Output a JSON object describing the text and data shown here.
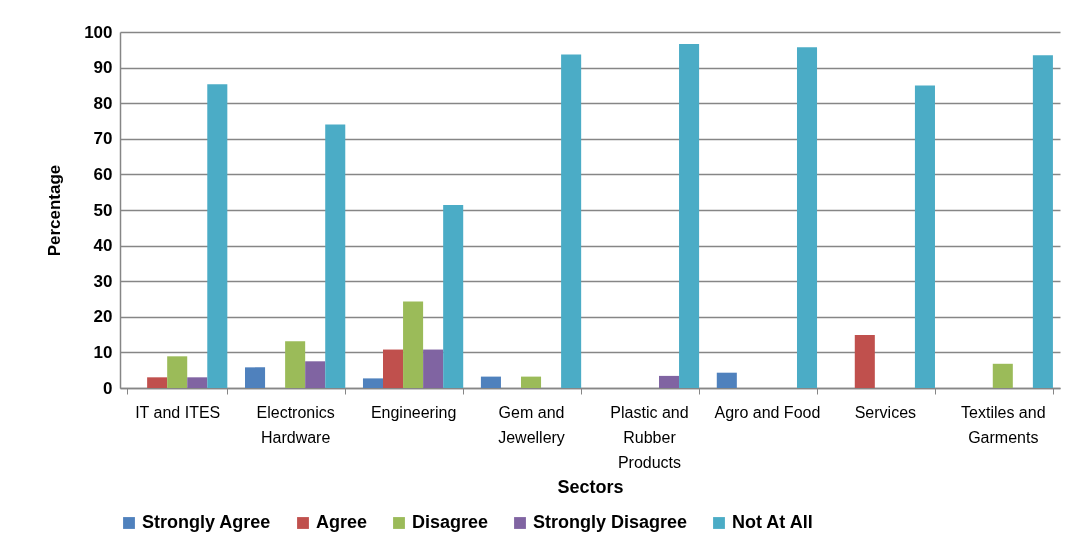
{
  "chart_data": {
    "type": "bar",
    "xlabel": "Sectors",
    "ylabel": "Percentage",
    "categories": [
      "IT and ITES",
      "Electronics Hardware",
      "Engineering",
      "Gem and Jewellery",
      "Plastic and Rubber Products",
      "Agro and Food",
      "Services",
      "Textiles and Garments"
    ],
    "series": [
      {
        "name": "Strongly Agree",
        "color": "#4f81bd",
        "values": [
          null,
          5.8,
          2.7,
          3.2,
          null,
          4.3,
          null,
          null
        ]
      },
      {
        "name": "Agree",
        "color": "#c0504d",
        "values": [
          3.0,
          null,
          10.8,
          null,
          null,
          null,
          14.9,
          null
        ]
      },
      {
        "name": "Disagree",
        "color": "#9bbb59",
        "values": [
          8.9,
          13.1,
          24.3,
          3.2,
          null,
          null,
          null,
          6.8
        ]
      },
      {
        "name": "Strongly Disagree",
        "color": "#8064a2",
        "values": [
          3.0,
          7.5,
          10.8,
          null,
          3.4,
          null,
          null,
          null
        ]
      },
      {
        "name": "Not At All",
        "color": "#4bacc6",
        "values": [
          85.3,
          74.0,
          51.4,
          93.7,
          96.6,
          95.7,
          85.0,
          93.5
        ]
      }
    ],
    "ylim": [
      0,
      100
    ],
    "yticks": [
      0,
      10,
      20,
      30,
      40,
      50,
      60,
      70,
      80,
      90,
      100
    ],
    "grid": "y",
    "legend": "bottom"
  }
}
